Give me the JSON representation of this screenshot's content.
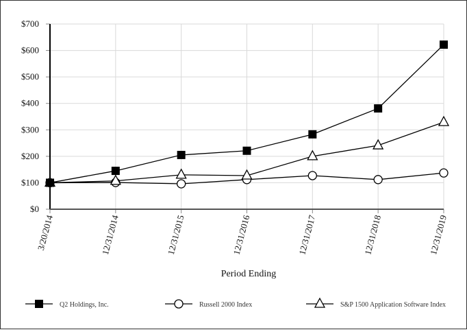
{
  "chart_data": {
    "type": "line",
    "title": "",
    "xlabel": "Period Ending",
    "ylabel": "",
    "ylim": [
      0,
      700
    ],
    "yticks": [
      "$0",
      "$100",
      "$200",
      "$300",
      "$400",
      "$500",
      "$600",
      "$700"
    ],
    "ytick_values": [
      0,
      100,
      200,
      300,
      400,
      500,
      600,
      700
    ],
    "grid": true,
    "legend_position": "bottom",
    "categories": [
      "3/20/2014",
      "12/31/2014",
      "12/31/2015",
      "12/31/2016",
      "12/31/2017",
      "12/31/2018",
      "12/31/2019"
    ],
    "series": [
      {
        "name": "Q2 Holdings, Inc.",
        "marker": "filled-square",
        "values": [
          100,
          145,
          205,
          221,
          283,
          381,
          622
        ]
      },
      {
        "name": "Russell 2000 Index",
        "marker": "open-circle",
        "values": [
          100,
          101,
          96,
          112,
          127,
          112,
          137
        ]
      },
      {
        "name": "S&P 1500 Application Software Index",
        "marker": "open-triangle",
        "values": [
          100,
          107,
          130,
          127,
          200,
          241,
          329
        ]
      }
    ]
  },
  "colors": {
    "line": "#000000",
    "grid": "#d9d9d9",
    "background": "#ffffff"
  }
}
